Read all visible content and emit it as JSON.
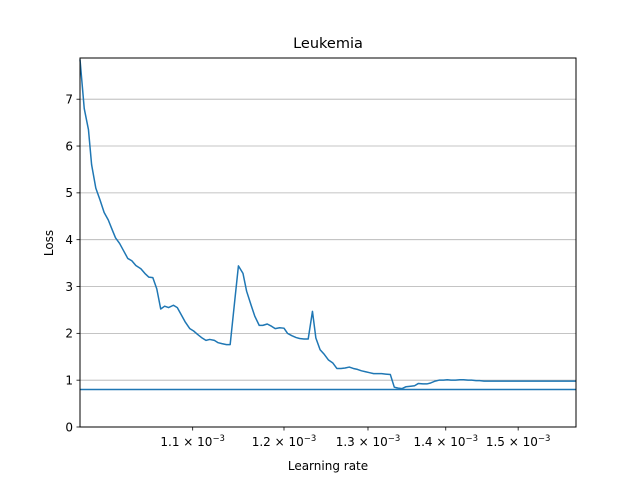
{
  "chart_data": {
    "type": "line",
    "title": "Leukemia",
    "xlabel": "Learning rate",
    "ylabel": "Loss",
    "xscale": "log",
    "grid": "horizontal (y-axis only)",
    "xlim": [
      0.000988,
      0.001585
    ],
    "ylim": [
      0,
      7.88
    ],
    "yticks": [
      0,
      1,
      2,
      3,
      4,
      5,
      6,
      7
    ],
    "xticks": [
      {
        "value": 0.0011,
        "label_mantissa": "1.1",
        "label_base": "10",
        "label_exp": "−3"
      },
      {
        "value": 0.0012,
        "label_mantissa": "1.2",
        "label_base": "10",
        "label_exp": "−3"
      },
      {
        "value": 0.0013,
        "label_mantissa": "1.3",
        "label_base": "10",
        "label_exp": "−3"
      },
      {
        "value": 0.0014,
        "label_mantissa": "1.4",
        "label_base": "10",
        "label_exp": "−3"
      },
      {
        "value": 0.0015,
        "label_mantissa": "1.5",
        "label_base": "10",
        "label_exp": "−3"
      }
    ],
    "series_color": "#1f77b4",
    "hline": {
      "y": 0.8,
      "color": "#1f77b4"
    },
    "series": [
      {
        "x": [
          0.000988,
          0.000992,
          0.000996,
          0.000999,
          0.001003,
          0.001007,
          0.001011,
          0.001015,
          0.001019,
          0.001022,
          0.001026,
          0.00103,
          0.001034,
          0.001038,
          0.001042,
          0.001047,
          0.001051,
          0.001055,
          0.001059,
          0.001063,
          0.001067,
          0.001071,
          0.001075,
          0.00108,
          0.001084,
          0.001088,
          0.001092,
          0.001097,
          0.001101,
          0.001105,
          0.00111,
          0.001114,
          0.001118,
          0.001123,
          0.001127,
          0.001131,
          0.001136,
          0.00114,
          0.001145,
          0.001149,
          0.001154,
          0.001158,
          0.001163,
          0.001167,
          0.001172,
          0.001176,
          0.001181,
          0.001186,
          0.00119,
          0.001195,
          0.0012,
          0.001204,
          0.001209,
          0.001214,
          0.001218,
          0.001223,
          0.001228,
          0.001233,
          0.001237,
          0.001242,
          0.001247,
          0.001252,
          0.001257,
          0.001262,
          0.001267,
          0.001272,
          0.001277,
          0.001282,
          0.001287,
          0.001292,
          0.001297,
          0.001302,
          0.001307,
          0.001312,
          0.001317,
          0.001322,
          0.001328,
          0.001333,
          0.001338,
          0.001343,
          0.001348,
          0.001354,
          0.001359,
          0.001364,
          0.00137,
          0.001375,
          0.00138,
          0.001386,
          0.001391,
          0.001397,
          0.001402,
          0.001407,
          0.001413,
          0.001419,
          0.001424,
          0.00143,
          0.001435,
          0.001441,
          0.001446,
          0.001452,
          0.001458,
          0.001463,
          0.001469,
          0.001475,
          0.001481,
          0.001486,
          0.001492,
          0.001498,
          0.001504,
          0.00151,
          0.001516,
          0.001522,
          0.001528,
          0.001534,
          0.00154,
          0.001546,
          0.001552,
          0.001558,
          0.001564,
          0.00157,
          0.001576,
          0.001582,
          0.001585
        ],
        "y": [
          7.85,
          6.8,
          6.35,
          5.6,
          5.1,
          4.85,
          4.58,
          4.42,
          4.2,
          4.04,
          3.92,
          3.76,
          3.6,
          3.55,
          3.45,
          3.38,
          3.28,
          3.2,
          3.19,
          2.95,
          2.52,
          2.58,
          2.55,
          2.6,
          2.55,
          2.4,
          2.25,
          2.1,
          2.05,
          1.98,
          1.9,
          1.85,
          1.87,
          1.85,
          1.8,
          1.78,
          1.76,
          1.76,
          2.7,
          3.44,
          3.28,
          2.9,
          2.6,
          2.37,
          2.17,
          2.17,
          2.2,
          2.15,
          2.1,
          2.12,
          2.11,
          2.0,
          1.95,
          1.91,
          1.89,
          1.88,
          1.88,
          2.47,
          1.9,
          1.65,
          1.55,
          1.43,
          1.37,
          1.25,
          1.25,
          1.26,
          1.28,
          1.25,
          1.23,
          1.2,
          1.18,
          1.16,
          1.14,
          1.14,
          1.14,
          1.13,
          1.12,
          0.85,
          0.83,
          0.82,
          0.86,
          0.87,
          0.88,
          0.93,
          0.92,
          0.92,
          0.94,
          0.98,
          1.0,
          1.0,
          1.01,
          1.0,
          1.0,
          1.01,
          1.01,
          1.0,
          1.0,
          0.99,
          0.99,
          0.98,
          0.98,
          0.98,
          0.98,
          0.98,
          0.98,
          0.98,
          0.98,
          0.98,
          0.98,
          0.98,
          0.98,
          0.98,
          0.98,
          0.98,
          0.98,
          0.98,
          0.98,
          0.98,
          0.98,
          0.98,
          0.98,
          0.98,
          0.98
        ]
      }
    ]
  }
}
